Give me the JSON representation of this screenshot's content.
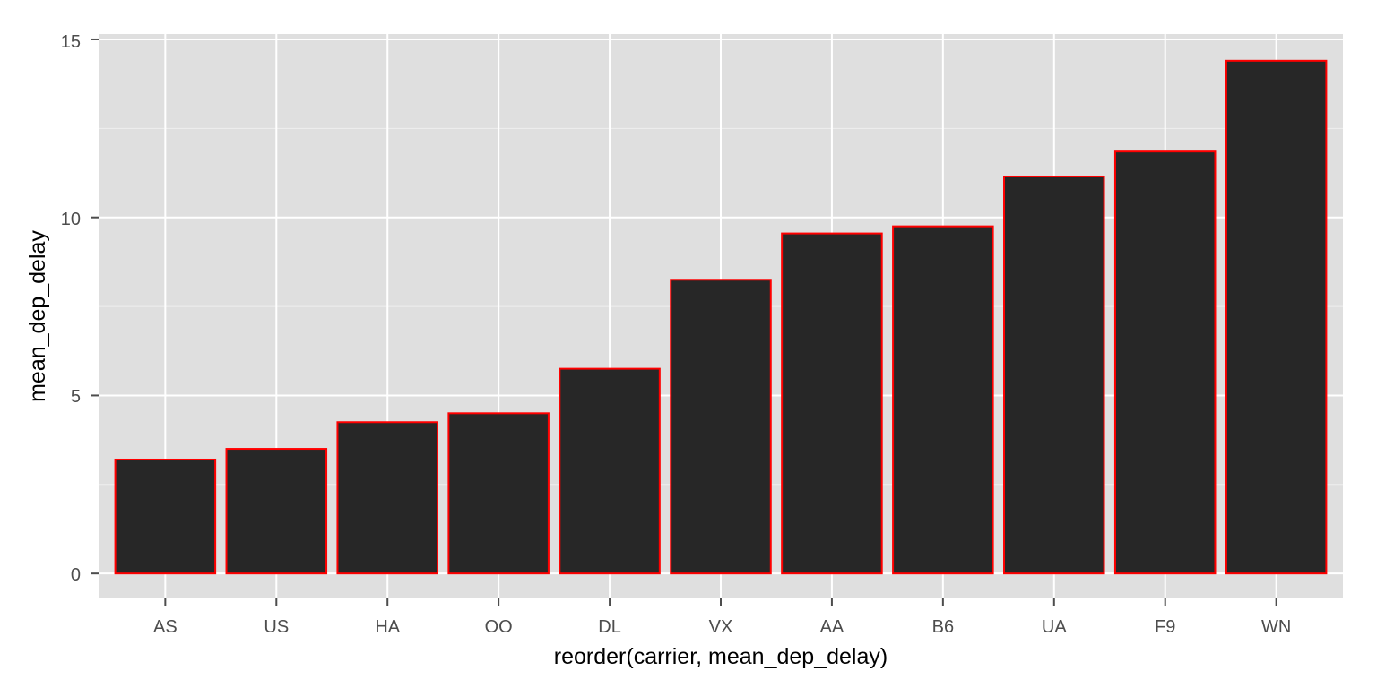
{
  "chart_data": {
    "type": "bar",
    "title": "",
    "xlabel": "reorder(carrier, mean_dep_delay)",
    "ylabel": "mean_dep_delay",
    "categories": [
      "AS",
      "US",
      "HA",
      "OO",
      "DL",
      "VX",
      "AA",
      "B6",
      "UA",
      "F9",
      "WN"
    ],
    "values": [
      3.2,
      3.5,
      4.25,
      4.5,
      5.75,
      8.25,
      9.55,
      9.75,
      11.15,
      11.85,
      14.4
    ],
    "ylim": [
      -0.7,
      15.15
    ],
    "yticks": [
      "0",
      "5",
      "10",
      "15"
    ],
    "grid": true,
    "legend": "none",
    "colors": {
      "panel_background": "#dfdfdf",
      "grid_major": "#ffffff",
      "grid_minor": "#efefef",
      "bar_fill": "#272727",
      "bar_outline": "#ff0000"
    }
  }
}
